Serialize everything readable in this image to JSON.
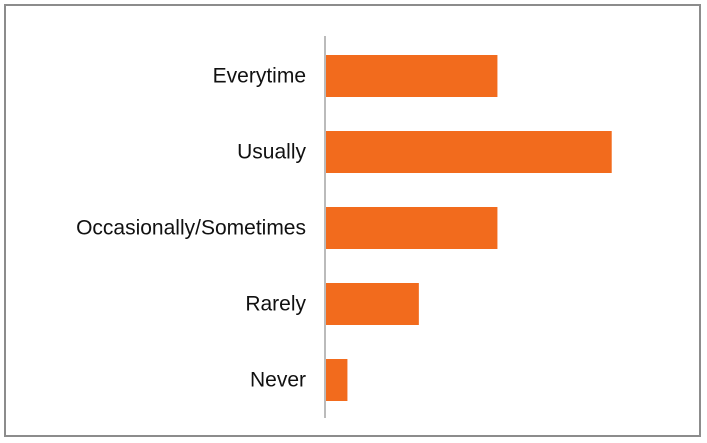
{
  "chart_data": {
    "type": "bar",
    "orientation": "horizontal",
    "title": "",
    "xlabel": "",
    "ylabel": "",
    "categories": [
      "Everytime",
      "Usually",
      "Occasionally/Sometimes",
      "Rarely",
      "Never"
    ],
    "values": [
      24,
      40,
      24,
      13,
      3
    ],
    "xlim": [
      0,
      42
    ],
    "grid": false,
    "legend": "none",
    "bar_color": "#f26b1d",
    "axis_color": "#777777"
  }
}
